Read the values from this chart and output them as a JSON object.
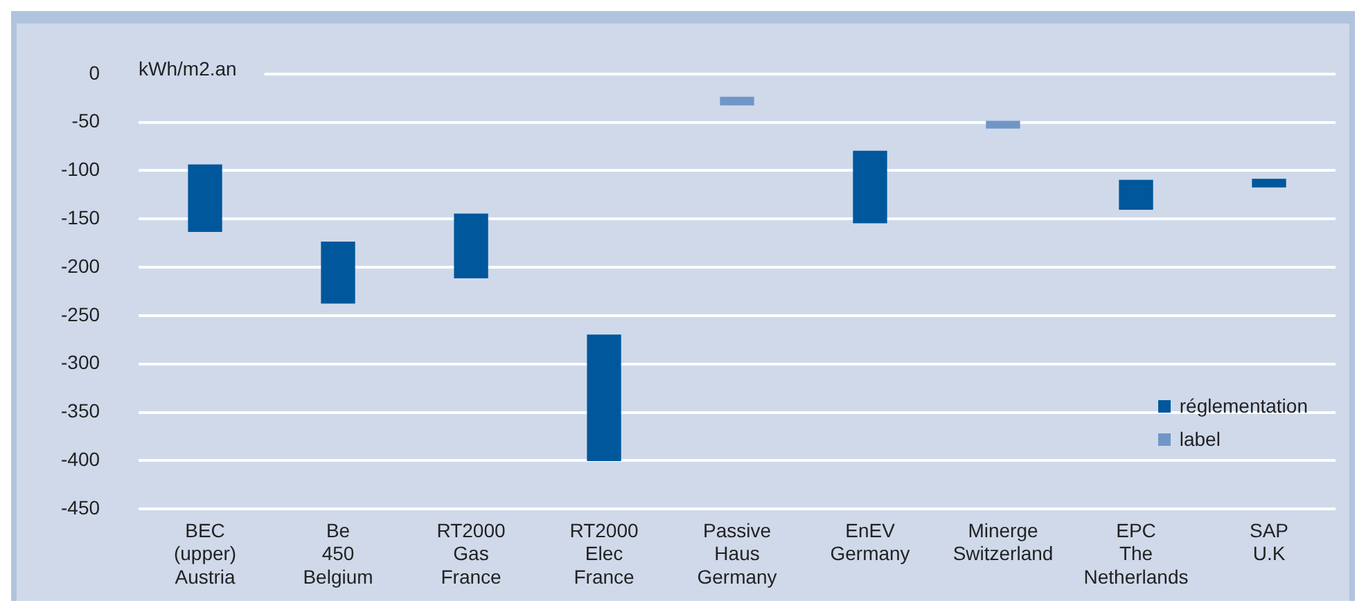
{
  "chart_data": {
    "type": "bar",
    "ylabel": "kWh/m2.an",
    "categories": [
      "BEC\n(upper)\nAustria",
      "Be\n450\nBelgium",
      "RT2000\nGas\nFrance",
      "RT2000\nElec\nFrance",
      "Passive\nHaus\nGermany",
      "EnEV\nGermany",
      "Minerge\nSwitzerland",
      "EPC\nThe\nNetherlands",
      "SAP\nU.K"
    ],
    "series": [
      {
        "name": "réglementation",
        "color": "#00579b",
        "base": [
          -163,
          -237,
          -211,
          -400,
          null,
          -154,
          null,
          -140,
          -117
        ],
        "values": [
          69,
          63,
          66,
          130,
          null,
          74,
          null,
          30,
          8
        ]
      },
      {
        "name": "label",
        "color": "#7096c8",
        "base": [
          null,
          null,
          null,
          null,
          -32,
          null,
          -56,
          null,
          null
        ],
        "values": [
          null,
          null,
          null,
          null,
          8,
          null,
          7,
          null,
          null
        ]
      }
    ],
    "ylim": [
      -450,
      0
    ],
    "yticks": [
      -450,
      -400,
      -350,
      -300,
      -250,
      -200,
      -150,
      -100,
      -50,
      0
    ],
    "grid": "y",
    "legend": "right"
  }
}
